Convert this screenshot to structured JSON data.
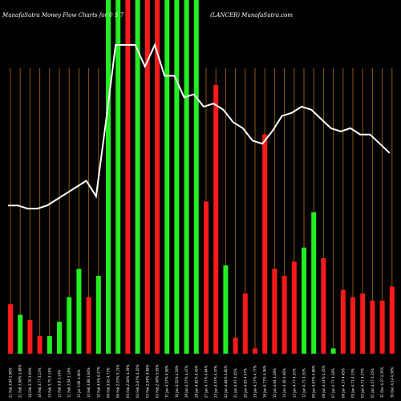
{
  "header": {
    "left": "MunafaSutra  Money  Flow  Charts for 0  S  7",
    "right": "(LANCER) MunafaSutra.com"
  },
  "colors": {
    "background": "#000000",
    "gridline": "#8a5a0f",
    "up": "#22ee22",
    "down": "#ff1a1a",
    "line": "#ffffff"
  },
  "chart_data": {
    "type": "bar",
    "title": "",
    "xlabel": "",
    "ylabel": "",
    "ylim": [
      0,
      100
    ],
    "line_ylim": [
      0,
      100
    ],
    "categories": [
      "21 Feb 3.94 2.98%",
      "21 Feb 3.98% 3.88%",
      "18 Feb 3.76 3.09%",
      "16 Feb 3.77 3.13%",
      "13 Feb 3.75 3.14%",
      "12 Feb 3.8 3.14%",
      "11 Feb 3.94 3.14%",
      "12 Jul 3.96 4.60%",
      "10 Feb 3.88 3.94%",
      "10 Feb 4.5% 6.27%",
      "09 Feb 3.65 4.73%",
      "06 Feb 2.03% 5.15%",
      "05 Feb 2.56% 4.39%",
      "04 Feb 2.87% 4.20%",
      "03 Feb 2.94% 4.89%",
      "02 Feb 2.98% 5.65%",
      "31 Jan 4.57% 4.58%",
      "30 Jan 4.52% 4.18%",
      "29 Jan 4.57% 4.47%",
      "28 Jan 4.82% 4.45%",
      "27 Jan 4.77% 4.64%",
      "23 Jan 4.57% 4.47%",
      "22 Jan 4.84% 4.82%",
      "21 Jan 4.97 4.45%",
      "20 Jan 4.83 4.57%",
      "19 Jan 4.37% 4.77%",
      "16 Jan 4.77% 4.36%",
      "15 Jan 4.64 4.28%",
      "14 Jan 4.48 4.46%",
      "13 Jan 4.77 4.30%",
      "12 Jan 4.71 4.30%",
      "09 Jan 4.67% 4.96%",
      "08 Jan 4.14% 4.35%",
      "07 Jan 4.77 4.28%",
      "06 Jan 4.37 4.45%",
      "05 Jan 4.71 4.33%",
      "02 Jan 4.71 4.37%",
      "01 Jan 4.57 4.35%",
      "31 Dec 4.37 4.35%",
      "30 Dec 4.14 4.39%"
    ],
    "bar_colors": [
      "down",
      "up",
      "down",
      "down",
      "up",
      "up",
      "up",
      "up",
      "down",
      "up",
      "up",
      "up",
      "down",
      "up",
      "down",
      "down",
      "up",
      "up",
      "up",
      "up",
      "down",
      "down",
      "up",
      "down",
      "down",
      "down",
      "down",
      "down",
      "down",
      "down",
      "up",
      "up",
      "down",
      "up",
      "down",
      "down",
      "down",
      "down",
      "down",
      "down"
    ],
    "values": [
      14,
      11,
      9.5,
      5,
      5,
      9,
      16,
      24,
      16,
      22,
      100,
      100,
      100,
      100,
      100,
      100,
      100,
      100,
      100,
      100,
      43,
      76,
      25,
      4.5,
      17,
      1.5,
      62,
      24,
      22,
      26,
      30,
      40,
      27,
      1.5,
      18,
      16,
      17,
      15,
      15,
      19
    ],
    "line": [
      48,
      48,
      47,
      47,
      48,
      50,
      52,
      54,
      56,
      51,
      75,
      100,
      100,
      100,
      93,
      100,
      90,
      90,
      83,
      84,
      80,
      81,
      79,
      75,
      73,
      69,
      68,
      72,
      77,
      78,
      80,
      79,
      76,
      73,
      72,
      73,
      71,
      71,
      68,
      65
    ]
  }
}
